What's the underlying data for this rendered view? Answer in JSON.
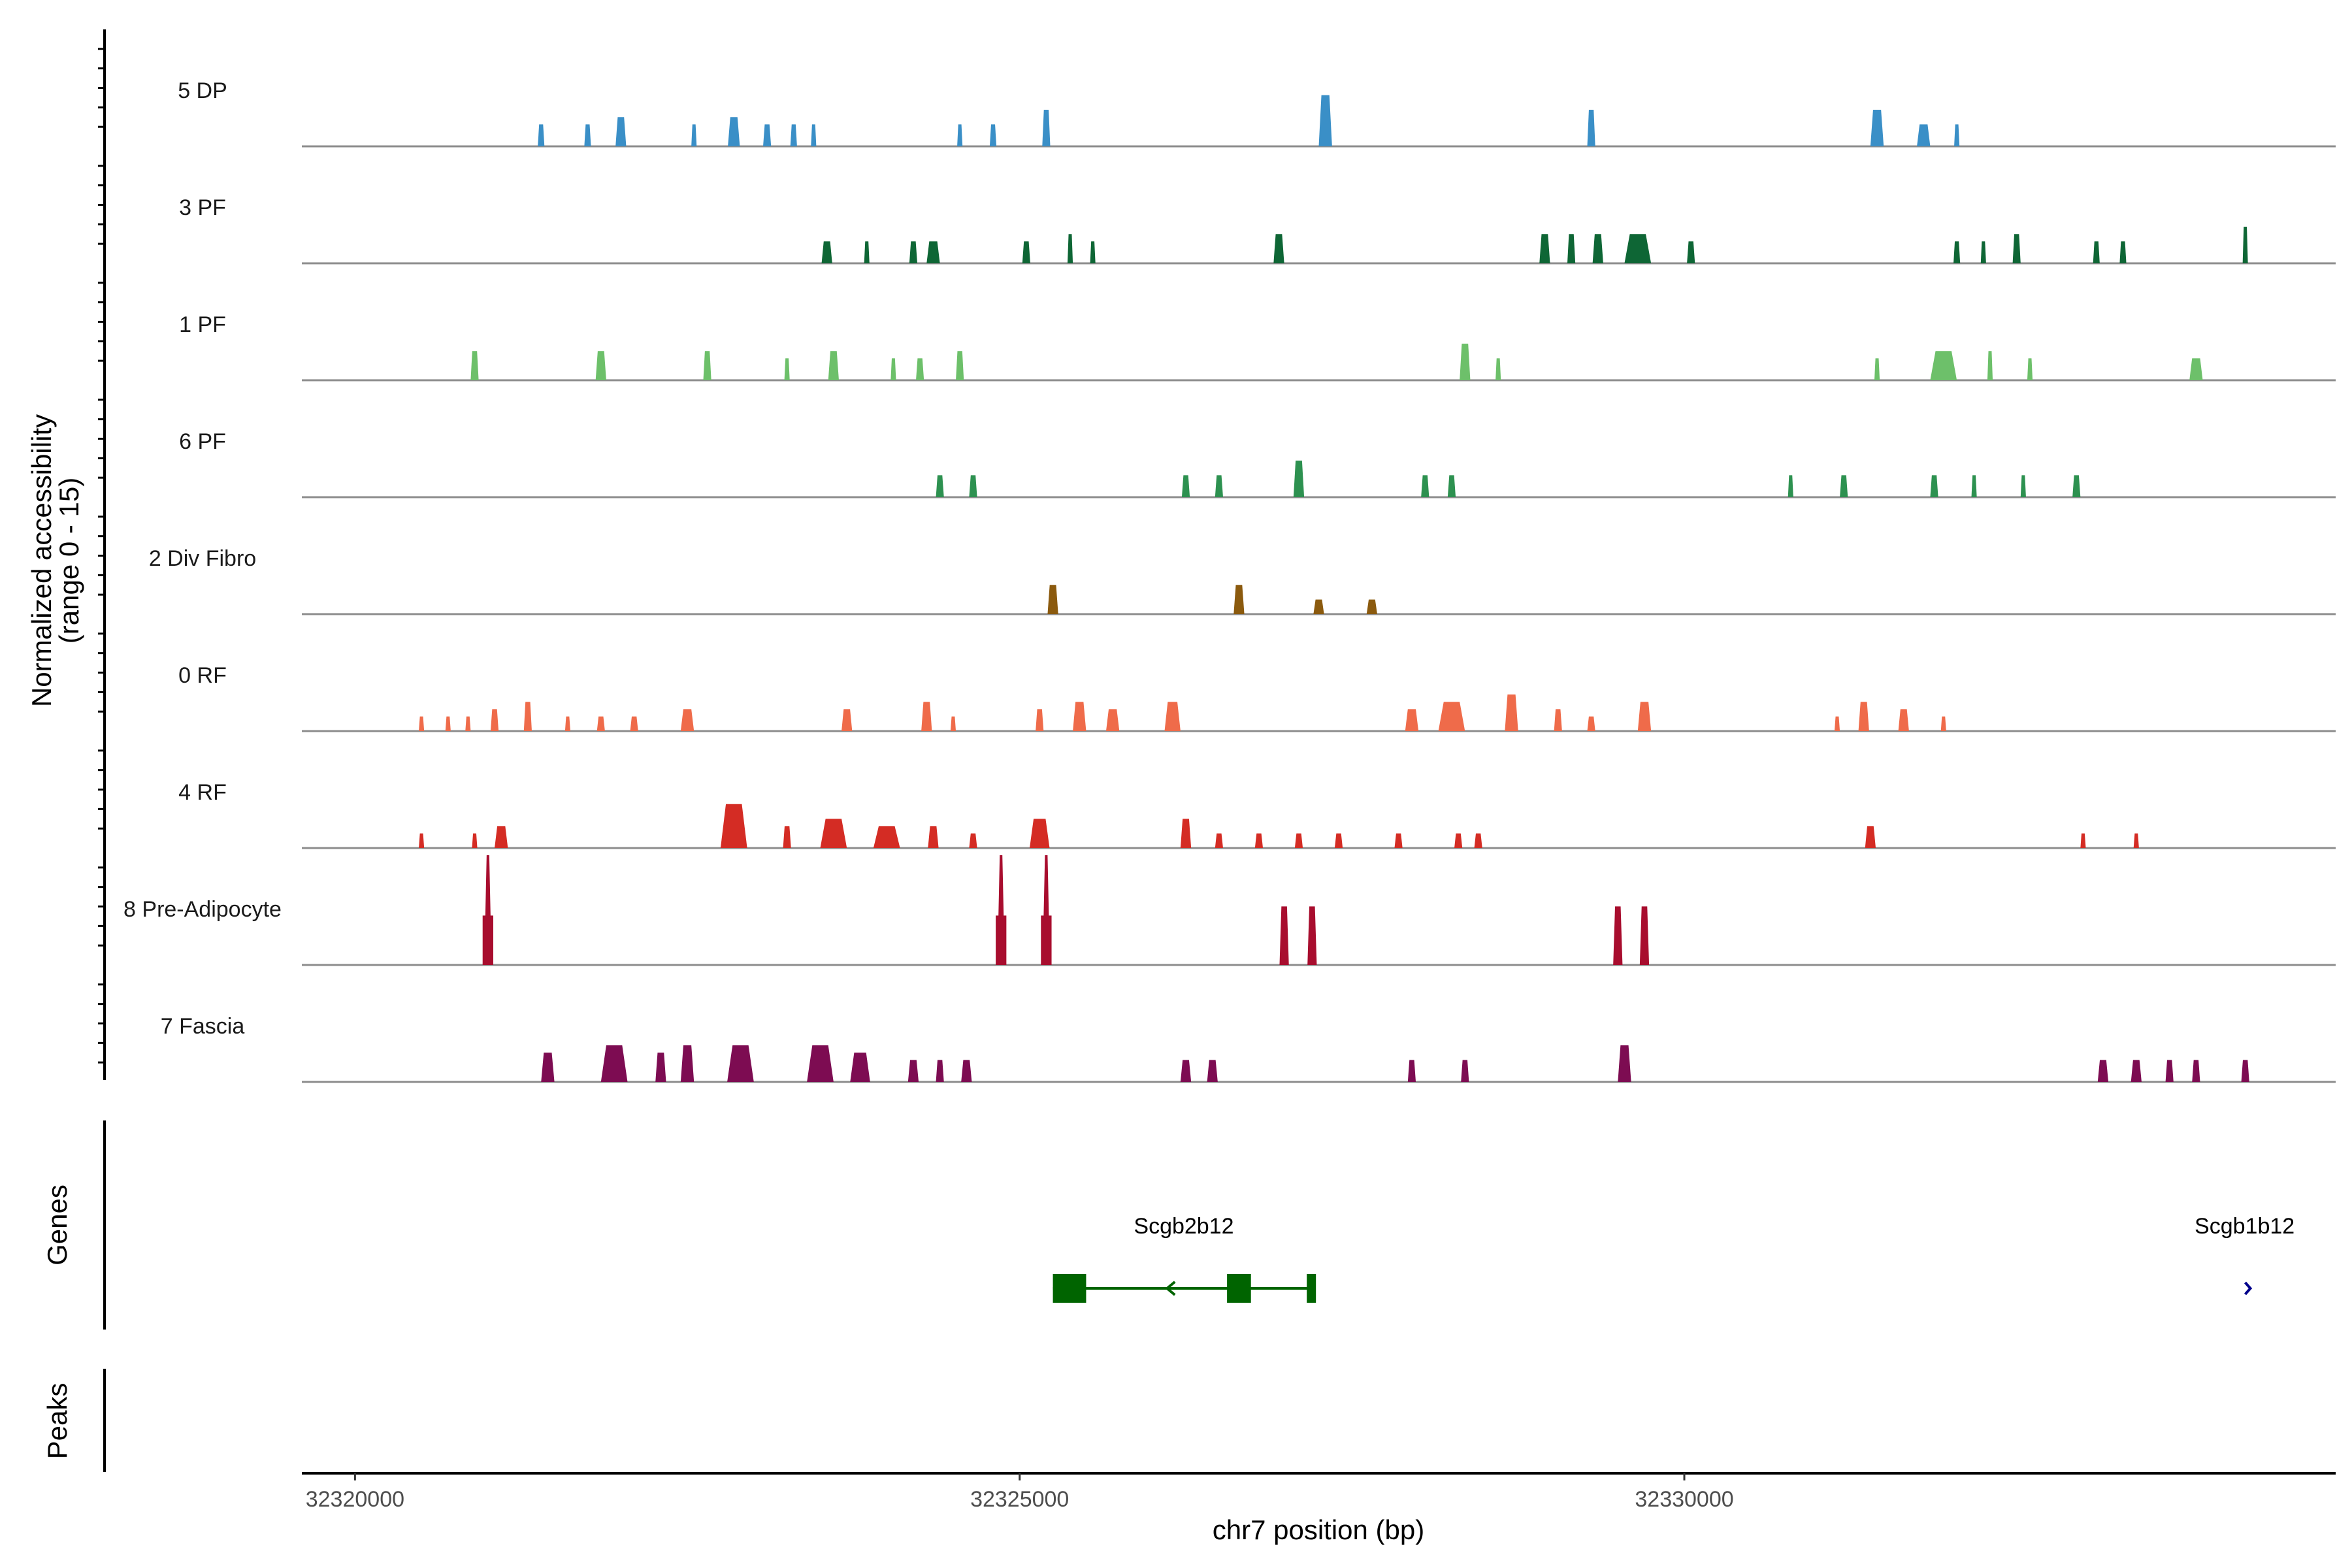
{
  "chart_data": {
    "type": "area",
    "title": "",
    "xlabel": "chr7 position (bp)",
    "ylabel_line1": "Normalized accessibility",
    "ylabel_line2": "(range 0 - 15)",
    "xlim": [
      32319600,
      32334900
    ],
    "ylim": [
      0,
      15
    ],
    "x_ticks": [
      32320000,
      32325000,
      32330000
    ],
    "x_tick_labels": [
      "32320000",
      "32325000",
      "32330000"
    ],
    "panel_labels": {
      "genes": "Genes",
      "peaks": "Peaks"
    },
    "series": [
      {
        "name": "5 DP",
        "color": "#3a8fc7",
        "peaks": [
          [
            32321400,
            50,
            3
          ],
          [
            32321750,
            50,
            3
          ],
          [
            32322000,
            80,
            4
          ],
          [
            32322550,
            40,
            3
          ],
          [
            32322850,
            90,
            4
          ],
          [
            32323100,
            60,
            3
          ],
          [
            32323300,
            50,
            3
          ],
          [
            32323450,
            40,
            3
          ],
          [
            32324550,
            40,
            3
          ],
          [
            32324800,
            50,
            3
          ],
          [
            32325200,
            60,
            5
          ],
          [
            32327300,
            100,
            7
          ],
          [
            32329300,
            60,
            5
          ],
          [
            32331450,
            100,
            5
          ],
          [
            32331800,
            100,
            3
          ],
          [
            32332050,
            40,
            3
          ]
        ]
      },
      {
        "name": "3 PF",
        "color": "#0e6635",
        "peaks": [
          [
            32323550,
            80,
            3
          ],
          [
            32323850,
            40,
            3
          ],
          [
            32324200,
            60,
            3
          ],
          [
            32324350,
            100,
            3
          ],
          [
            32325050,
            60,
            3
          ],
          [
            32325380,
            40,
            4
          ],
          [
            32325550,
            40,
            3
          ],
          [
            32326950,
            80,
            4
          ],
          [
            32328950,
            80,
            4
          ],
          [
            32329150,
            60,
            4
          ],
          [
            32329350,
            80,
            4
          ],
          [
            32329650,
            200,
            4
          ],
          [
            32330050,
            60,
            3
          ],
          [
            32332050,
            50,
            3
          ],
          [
            32332250,
            40,
            3
          ],
          [
            32332500,
            60,
            4
          ],
          [
            32333100,
            50,
            3
          ],
          [
            32333300,
            50,
            3
          ],
          [
            32334220,
            10,
            5
          ]
        ]
      },
      {
        "name": "1 PF",
        "color": "#6dc06a",
        "peaks": [
          [
            32320900,
            60,
            4
          ],
          [
            32321850,
            80,
            4
          ],
          [
            32322650,
            60,
            4
          ],
          [
            32323250,
            40,
            3
          ],
          [
            32323600,
            80,
            4
          ],
          [
            32324050,
            40,
            3
          ],
          [
            32324250,
            60,
            3
          ],
          [
            32324550,
            60,
            4
          ],
          [
            32328350,
            80,
            5
          ],
          [
            32328600,
            40,
            3
          ],
          [
            32331450,
            40,
            3
          ],
          [
            32331950,
            200,
            4
          ],
          [
            32332300,
            40,
            4
          ],
          [
            32332600,
            40,
            3
          ],
          [
            32333850,
            100,
            3
          ]
        ]
      },
      {
        "name": "6 PF",
        "color": "#2d9150",
        "peaks": [
          [
            32324400,
            60,
            3
          ],
          [
            32324650,
            60,
            3
          ],
          [
            32326250,
            60,
            3
          ],
          [
            32326500,
            60,
            3
          ],
          [
            32327100,
            80,
            5
          ],
          [
            32328050,
            60,
            3
          ],
          [
            32328250,
            60,
            3
          ],
          [
            32330800,
            40,
            3
          ],
          [
            32331200,
            60,
            3
          ],
          [
            32331880,
            60,
            3
          ],
          [
            32332180,
            40,
            3
          ],
          [
            32332550,
            40,
            3
          ],
          [
            32332950,
            60,
            3
          ]
        ]
      },
      {
        "name": "2 Div Fibro",
        "color": "#8b5a0e",
        "peaks": [
          [
            32325250,
            80,
            4
          ],
          [
            32326650,
            80,
            4
          ],
          [
            32327250,
            80,
            2
          ],
          [
            32327650,
            80,
            2
          ]
        ]
      },
      {
        "name": "0 RF",
        "color": "#ef6b4a",
        "peaks": [
          [
            32320500,
            40,
            2
          ],
          [
            32320700,
            40,
            2
          ],
          [
            32320850,
            40,
            2
          ],
          [
            32321050,
            60,
            3
          ],
          [
            32321300,
            60,
            4
          ],
          [
            32321600,
            40,
            2
          ],
          [
            32321850,
            60,
            2
          ],
          [
            32322100,
            60,
            2
          ],
          [
            32322500,
            100,
            3
          ],
          [
            32323700,
            80,
            3
          ],
          [
            32324300,
            80,
            4
          ],
          [
            32324500,
            40,
            2
          ],
          [
            32325150,
            60,
            3
          ],
          [
            32325450,
            100,
            4
          ],
          [
            32325700,
            100,
            3
          ],
          [
            32326150,
            120,
            4
          ],
          [
            32327950,
            100,
            3
          ],
          [
            32328250,
            200,
            4
          ],
          [
            32328700,
            100,
            5
          ],
          [
            32329050,
            60,
            3
          ],
          [
            32329300,
            60,
            2
          ],
          [
            32329700,
            100,
            4
          ],
          [
            32331150,
            40,
            2
          ],
          [
            32331350,
            80,
            4
          ],
          [
            32331650,
            80,
            3
          ],
          [
            32331950,
            40,
            2
          ]
        ]
      },
      {
        "name": "4 RF",
        "color": "#d42c24",
        "peaks": [
          [
            32320500,
            40,
            2
          ],
          [
            32320900,
            40,
            2
          ],
          [
            32321100,
            100,
            3
          ],
          [
            32322850,
            200,
            6
          ],
          [
            32323250,
            60,
            3
          ],
          [
            32323600,
            200,
            4
          ],
          [
            32324000,
            200,
            3
          ],
          [
            32324350,
            80,
            3
          ],
          [
            32324650,
            60,
            2
          ],
          [
            32325150,
            150,
            4
          ],
          [
            32326250,
            80,
            4
          ],
          [
            32326500,
            60,
            2
          ],
          [
            32326800,
            60,
            2
          ],
          [
            32327100,
            60,
            2
          ],
          [
            32327400,
            60,
            2
          ],
          [
            32327850,
            60,
            2
          ],
          [
            32328300,
            60,
            2
          ],
          [
            32328450,
            60,
            2
          ],
          [
            32331400,
            80,
            3
          ],
          [
            32333000,
            40,
            2
          ],
          [
            32333400,
            40,
            2
          ]
        ]
      },
      {
        "name": "8 Pre-Adipocyte",
        "color": "#a80d2e",
        "peaks": [
          [
            32321000,
            80,
            15
          ],
          [
            32324860,
            80,
            15
          ],
          [
            32325200,
            80,
            15
          ],
          [
            32326990,
            70,
            8
          ],
          [
            32327200,
            70,
            8
          ],
          [
            32329500,
            70,
            8
          ],
          [
            32329700,
            70,
            8
          ]
        ]
      },
      {
        "name": "7 Fascia",
        "color": "#7d0c52",
        "peaks": [
          [
            32321450,
            100,
            4
          ],
          [
            32321950,
            200,
            5
          ],
          [
            32322300,
            80,
            4
          ],
          [
            32322500,
            100,
            5
          ],
          [
            32322900,
            200,
            5
          ],
          [
            32323500,
            200,
            5
          ],
          [
            32323800,
            150,
            4
          ],
          [
            32324200,
            80,
            3
          ],
          [
            32324400,
            60,
            3
          ],
          [
            32324600,
            80,
            3
          ],
          [
            32326250,
            80,
            3
          ],
          [
            32326450,
            80,
            3
          ],
          [
            32327950,
            60,
            3
          ],
          [
            32328350,
            60,
            3
          ],
          [
            32329550,
            100,
            5
          ],
          [
            32333150,
            80,
            3
          ],
          [
            32333400,
            80,
            3
          ],
          [
            32333650,
            60,
            3
          ],
          [
            32333850,
            60,
            3
          ],
          [
            32334220,
            60,
            3
          ]
        ]
      }
    ],
    "genes": [
      {
        "name": "Scgb2b12",
        "start": 32325250,
        "end": 32327220,
        "strand": "-",
        "exons": [
          [
            32325250,
            32325500
          ],
          [
            32326560,
            32326740
          ],
          [
            32327160,
            32327220
          ]
        ]
      },
      {
        "name": "Scgb1b12",
        "start": 32334180,
        "end": 32334250,
        "strand": "+",
        "exons": []
      }
    ]
  }
}
